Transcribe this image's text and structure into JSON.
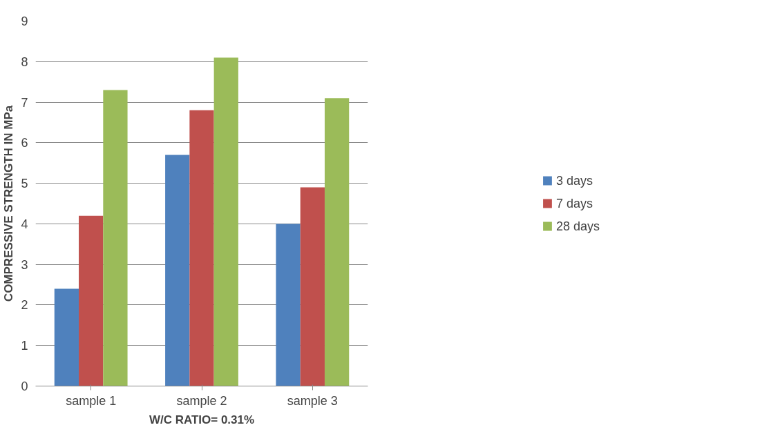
{
  "chart_data": {
    "type": "bar",
    "xlabel": "W/C RATIO= 0.31%",
    "ylabel": "COMPRESSIVE STRENGTH IN MPa",
    "categories": [
      "sample 1",
      "sample 2",
      "sample 3"
    ],
    "series": [
      {
        "name": "3 days",
        "color": "#4f81bd",
        "values": [
          2.4,
          5.7,
          4.0
        ]
      },
      {
        "name": "7 days",
        "color": "#c0504d",
        "values": [
          4.2,
          6.8,
          4.9
        ]
      },
      {
        "name": "28 days",
        "color": "#9bbb59",
        "values": [
          7.3,
          8.1,
          7.1
        ]
      }
    ],
    "ylim": [
      0,
      9
    ],
    "yticks": [
      0,
      1,
      2,
      3,
      4,
      5,
      6,
      7,
      8,
      9
    ],
    "grid": "y",
    "legend": "right"
  }
}
